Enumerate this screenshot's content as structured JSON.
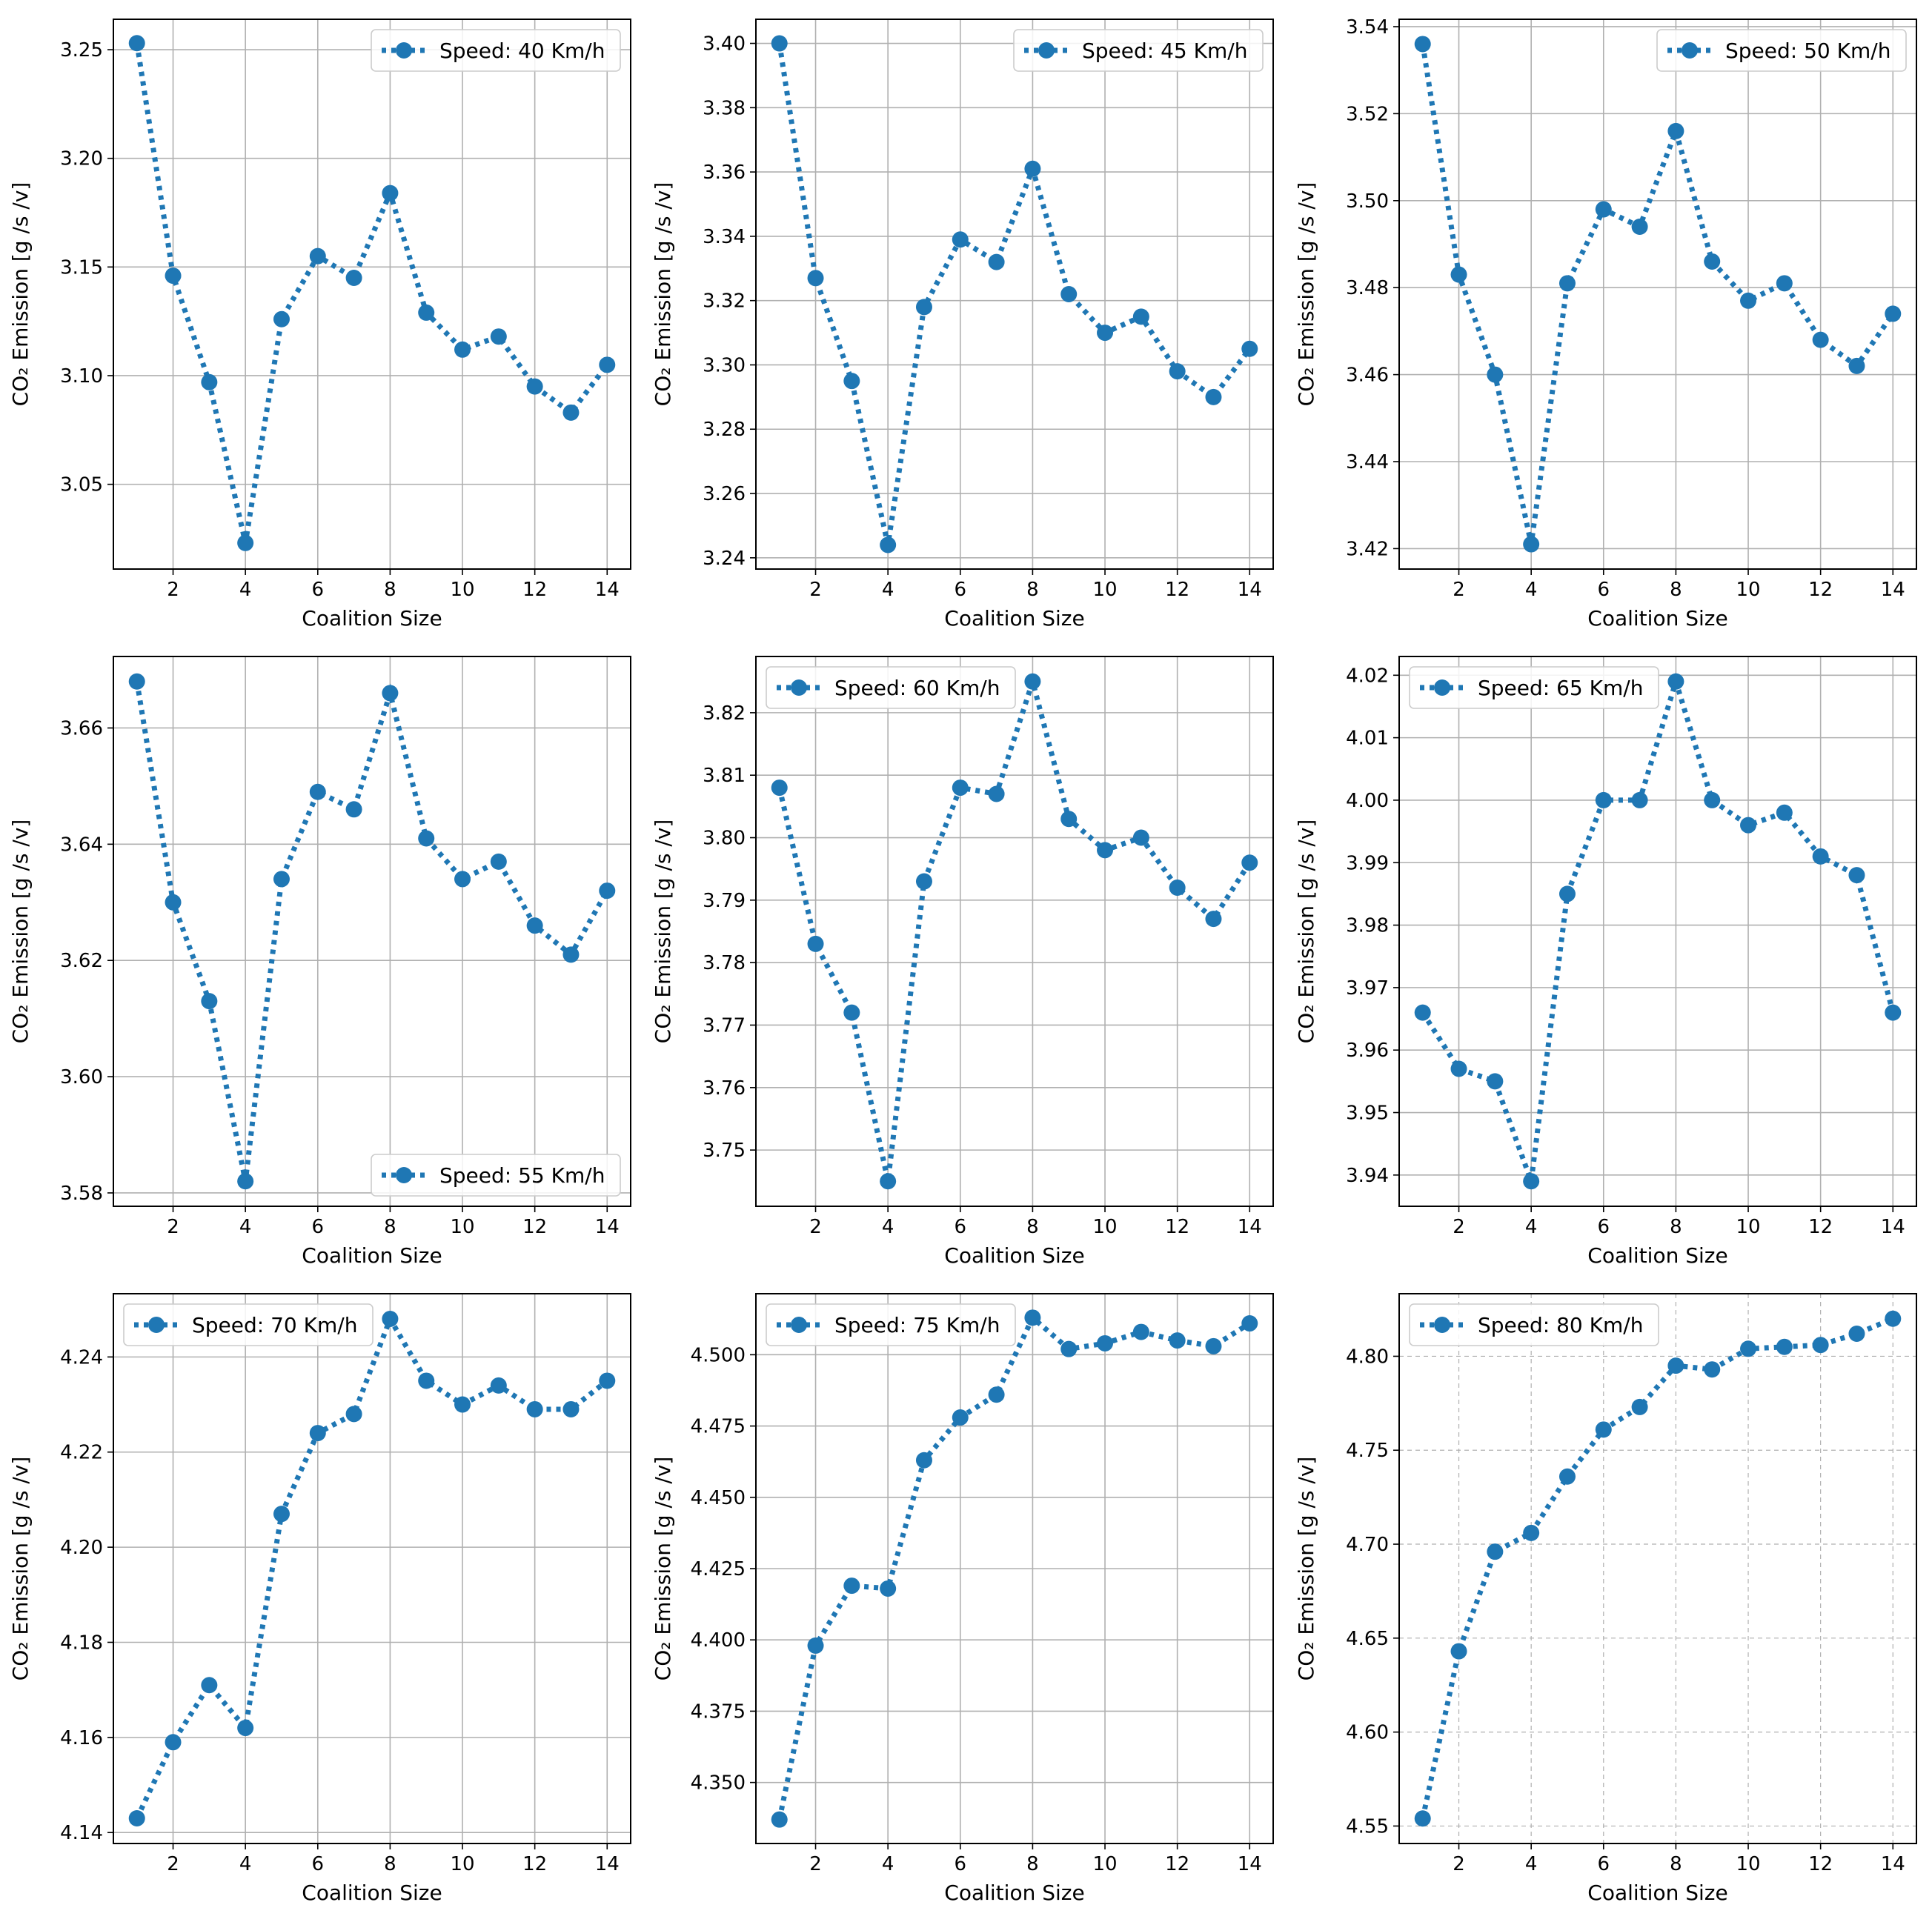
{
  "chart_data": [
    {
      "type": "line",
      "title": "",
      "xlabel": "Coalition Size",
      "ylabel": "CO₂ Emission [g /s /v]",
      "legend": "Speed: 40 Km/h",
      "legend_loc": "upper right",
      "x": [
        1,
        2,
        3,
        4,
        5,
        6,
        7,
        8,
        9,
        10,
        11,
        12,
        13,
        14
      ],
      "y": [
        3.253,
        3.146,
        3.097,
        3.023,
        3.126,
        3.155,
        3.145,
        3.184,
        3.129,
        3.112,
        3.118,
        3.095,
        3.083,
        3.105
      ],
      "xlim": [
        0.35,
        14.65
      ],
      "ylim": [
        3.011,
        3.264
      ],
      "xticks": [
        "2",
        "4",
        "6",
        "8",
        "10",
        "12",
        "14"
      ],
      "xtick_values": [
        2,
        4,
        6,
        8,
        10,
        12,
        14
      ],
      "yticks": [
        "3.05",
        "3.10",
        "3.15",
        "3.20",
        "3.25"
      ],
      "ytick_values": [
        3.05,
        3.1,
        3.15,
        3.2,
        3.25
      ],
      "color": "#1f77b4"
    },
    {
      "type": "line",
      "title": "",
      "xlabel": "Coalition Size",
      "ylabel": "CO₂ Emission [g /s /v]",
      "legend": "Speed: 45 Km/h",
      "legend_loc": "upper right",
      "x": [
        1,
        2,
        3,
        4,
        5,
        6,
        7,
        8,
        9,
        10,
        11,
        12,
        13,
        14
      ],
      "y": [
        3.4,
        3.327,
        3.295,
        3.244,
        3.318,
        3.339,
        3.332,
        3.361,
        3.322,
        3.31,
        3.315,
        3.298,
        3.29,
        3.305
      ],
      "xlim": [
        0.35,
        14.65
      ],
      "ylim": [
        3.2365,
        3.4075
      ],
      "xticks": [
        "2",
        "4",
        "6",
        "8",
        "10",
        "12",
        "14"
      ],
      "xtick_values": [
        2,
        4,
        6,
        8,
        10,
        12,
        14
      ],
      "yticks": [
        "3.24",
        "3.26",
        "3.28",
        "3.30",
        "3.32",
        "3.34",
        "3.36",
        "3.38",
        "3.40"
      ],
      "ytick_values": [
        3.24,
        3.26,
        3.28,
        3.3,
        3.32,
        3.34,
        3.36,
        3.38,
        3.4
      ],
      "color": "#1f77b4"
    },
    {
      "type": "line",
      "title": "",
      "xlabel": "Coalition Size",
      "ylabel": "CO₂ Emission [g /s /v]",
      "legend": "Speed: 50 Km/h",
      "legend_loc": "upper right",
      "x": [
        1,
        2,
        3,
        4,
        5,
        6,
        7,
        8,
        9,
        10,
        11,
        12,
        13,
        14
      ],
      "y": [
        3.536,
        3.483,
        3.46,
        3.421,
        3.481,
        3.498,
        3.494,
        3.516,
        3.486,
        3.477,
        3.481,
        3.468,
        3.462,
        3.474
      ],
      "xlim": [
        0.35,
        14.65
      ],
      "ylim": [
        3.4153,
        3.5417
      ],
      "xticks": [
        "2",
        "4",
        "6",
        "8",
        "10",
        "12",
        "14"
      ],
      "xtick_values": [
        2,
        4,
        6,
        8,
        10,
        12,
        14
      ],
      "yticks": [
        "3.42",
        "3.44",
        "3.46",
        "3.48",
        "3.50",
        "3.52",
        "3.54"
      ],
      "ytick_values": [
        3.42,
        3.44,
        3.46,
        3.48,
        3.5,
        3.52,
        3.54
      ],
      "color": "#1f77b4"
    },
    {
      "type": "line",
      "title": "",
      "xlabel": "Coalition Size",
      "ylabel": "CO₂ Emission [g /s /v]",
      "legend": "Speed: 55 Km/h",
      "legend_loc": "lower right",
      "x": [
        1,
        2,
        3,
        4,
        5,
        6,
        7,
        8,
        9,
        10,
        11,
        12,
        13,
        14
      ],
      "y": [
        3.668,
        3.63,
        3.613,
        3.582,
        3.634,
        3.649,
        3.646,
        3.666,
        3.641,
        3.634,
        3.637,
        3.626,
        3.621,
        3.632
      ],
      "xlim": [
        0.35,
        14.65
      ],
      "ylim": [
        3.5777,
        3.6723
      ],
      "xticks": [
        "2",
        "4",
        "6",
        "8",
        "10",
        "12",
        "14"
      ],
      "xtick_values": [
        2,
        4,
        6,
        8,
        10,
        12,
        14
      ],
      "yticks": [
        "3.58",
        "3.60",
        "3.62",
        "3.64",
        "3.66"
      ],
      "ytick_values": [
        3.58,
        3.6,
        3.62,
        3.64,
        3.66
      ],
      "color": "#1f77b4"
    },
    {
      "type": "line",
      "title": "",
      "xlabel": "Coalition Size",
      "ylabel": "CO₂ Emission [g /s /v]",
      "legend": "Speed: 60 Km/h",
      "legend_loc": "upper left",
      "x": [
        1,
        2,
        3,
        4,
        5,
        6,
        7,
        8,
        9,
        10,
        11,
        12,
        13,
        14
      ],
      "y": [
        3.808,
        3.783,
        3.772,
        3.745,
        3.793,
        3.808,
        3.807,
        3.825,
        3.803,
        3.798,
        3.8,
        3.792,
        3.787,
        3.796
      ],
      "xlim": [
        0.35,
        14.65
      ],
      "ylim": [
        3.741,
        3.829
      ],
      "xticks": [
        "2",
        "4",
        "6",
        "8",
        "10",
        "12",
        "14"
      ],
      "xtick_values": [
        2,
        4,
        6,
        8,
        10,
        12,
        14
      ],
      "yticks": [
        "3.75",
        "3.76",
        "3.77",
        "3.78",
        "3.79",
        "3.80",
        "3.81",
        "3.82"
      ],
      "ytick_values": [
        3.75,
        3.76,
        3.77,
        3.78,
        3.79,
        3.8,
        3.81,
        3.82
      ],
      "color": "#1f77b4"
    },
    {
      "type": "line",
      "title": "",
      "xlabel": "Coalition Size",
      "ylabel": "CO₂ Emission [g /s /v]",
      "legend": "Speed: 65 Km/h",
      "legend_loc": "upper left",
      "x": [
        1,
        2,
        3,
        4,
        5,
        6,
        7,
        8,
        9,
        10,
        11,
        12,
        13,
        14
      ],
      "y": [
        3.966,
        3.957,
        3.955,
        3.939,
        3.985,
        4.0,
        4.0,
        4.019,
        4.0,
        3.996,
        3.998,
        3.991,
        3.988,
        3.966
      ],
      "xlim": [
        0.35,
        14.65
      ],
      "ylim": [
        3.935,
        4.023
      ],
      "xticks": [
        "2",
        "4",
        "6",
        "8",
        "10",
        "12",
        "14"
      ],
      "xtick_values": [
        2,
        4,
        6,
        8,
        10,
        12,
        14
      ],
      "yticks": [
        "3.94",
        "3.95",
        "3.96",
        "3.97",
        "3.98",
        "3.99",
        "4.00",
        "4.01",
        "4.02"
      ],
      "ytick_values": [
        3.94,
        3.95,
        3.96,
        3.97,
        3.98,
        3.99,
        4.0,
        4.01,
        4.02
      ],
      "color": "#1f77b4"
    },
    {
      "type": "line",
      "title": "",
      "xlabel": "Coalition Size",
      "ylabel": "CO₂ Emission [g /s /v]",
      "legend": "Speed: 70 Km/h",
      "legend_loc": "upper left",
      "x": [
        1,
        2,
        3,
        4,
        5,
        6,
        7,
        8,
        9,
        10,
        11,
        12,
        13,
        14
      ],
      "y": [
        4.143,
        4.159,
        4.171,
        4.162,
        4.207,
        4.224,
        4.228,
        4.248,
        4.235,
        4.23,
        4.234,
        4.229,
        4.229,
        4.235
      ],
      "xlim": [
        0.35,
        14.65
      ],
      "ylim": [
        4.1377,
        4.2533
      ],
      "xticks": [
        "2",
        "4",
        "6",
        "8",
        "10",
        "12",
        "14"
      ],
      "xtick_values": [
        2,
        4,
        6,
        8,
        10,
        12,
        14
      ],
      "yticks": [
        "4.14",
        "4.16",
        "4.18",
        "4.20",
        "4.22",
        "4.24"
      ],
      "ytick_values": [
        4.14,
        4.16,
        4.18,
        4.2,
        4.22,
        4.24
      ],
      "color": "#1f77b4"
    },
    {
      "type": "line",
      "title": "",
      "xlabel": "Coalition Size",
      "ylabel": "CO₂ Emission [g /s /v]",
      "legend": "Speed: 75 Km/h",
      "legend_loc": "upper left",
      "x": [
        1,
        2,
        3,
        4,
        5,
        6,
        7,
        8,
        9,
        10,
        11,
        12,
        13,
        14
      ],
      "y": [
        4.337,
        4.398,
        4.419,
        4.418,
        4.463,
        4.478,
        4.486,
        4.513,
        4.502,
        4.504,
        4.508,
        4.505,
        4.503,
        4.511
      ],
      "xlim": [
        0.35,
        14.65
      ],
      "ylim": [
        4.3286,
        4.5214
      ],
      "xticks": [
        "2",
        "4",
        "6",
        "8",
        "10",
        "12",
        "14"
      ],
      "xtick_values": [
        2,
        4,
        6,
        8,
        10,
        12,
        14
      ],
      "yticks": [
        "4.350",
        "4.375",
        "4.400",
        "4.425",
        "4.450",
        "4.475",
        "4.500"
      ],
      "ytick_values": [
        4.35,
        4.375,
        4.4,
        4.425,
        4.45,
        4.475,
        4.5
      ],
      "color": "#1f77b4"
    },
    {
      "type": "line",
      "title": "",
      "xlabel": "Coalition Size",
      "ylabel": "CO₂ Emission [g /s /v]",
      "legend": "Speed: 80 Km/h",
      "legend_loc": "upper left",
      "x": [
        1,
        2,
        3,
        4,
        5,
        6,
        7,
        8,
        9,
        10,
        11,
        12,
        13,
        14
      ],
      "y": [
        4.554,
        4.643,
        4.696,
        4.706,
        4.736,
        4.761,
        4.773,
        4.795,
        4.793,
        4.804,
        4.805,
        4.806,
        4.812,
        4.82
      ],
      "xlim": [
        0.35,
        14.65
      ],
      "ylim": [
        4.5407,
        4.8333
      ],
      "xticks": [
        "2",
        "4",
        "6",
        "8",
        "10",
        "12",
        "14"
      ],
      "xtick_values": [
        2,
        4,
        6,
        8,
        10,
        12,
        14
      ],
      "yticks": [
        "4.55",
        "4.60",
        "4.65",
        "4.70",
        "4.75",
        "4.80"
      ],
      "ytick_values": [
        4.55,
        4.6,
        4.65,
        4.7,
        4.75,
        4.8
      ],
      "color": "#1f77b4",
      "grid_style": "dashed"
    }
  ]
}
